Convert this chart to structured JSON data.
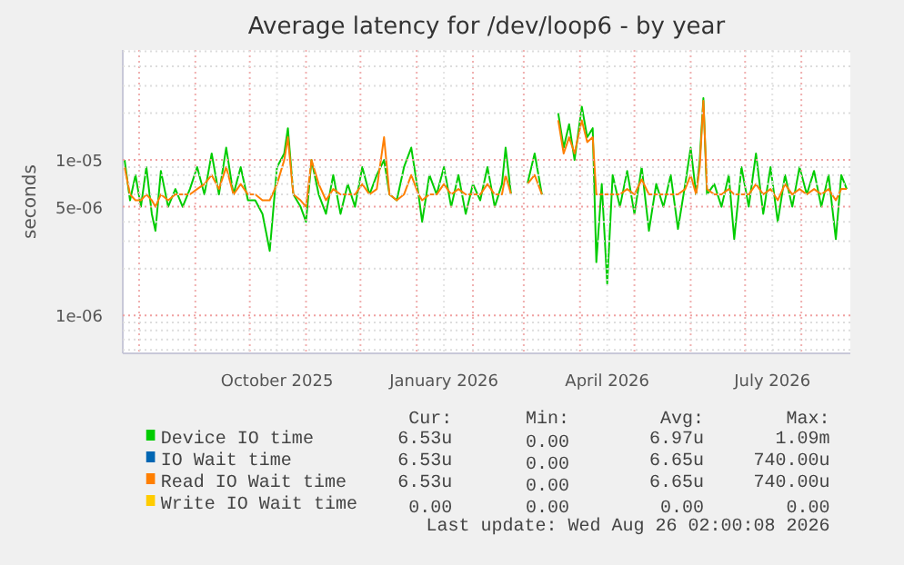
{
  "chart_data": {
    "type": "line",
    "title": "Average latency for /dev/loop6 - by year",
    "ylabel": "seconds",
    "log": "y",
    "grid": true,
    "legend": "bottom",
    "marker": "none",
    "line_style": "solid",
    "xlim": [
      "2025-07-23",
      "2026-08-28"
    ],
    "xticks": [
      {
        "value": "2025-08-01",
        "label": null
      },
      {
        "value": "2025-09-01",
        "label": null
      },
      {
        "value": "2025-10-01",
        "label": null
      },
      {
        "value": "2025-10-16",
        "label": "October 2025"
      },
      {
        "value": "2025-11-01",
        "label": null
      },
      {
        "value": "2025-12-01",
        "label": null
      },
      {
        "value": "2026-01-01",
        "label": null
      },
      {
        "value": "2026-01-16",
        "label": "January 2026"
      },
      {
        "value": "2026-02-01",
        "label": null
      },
      {
        "value": "2026-03-01",
        "label": null
      },
      {
        "value": "2026-04-01",
        "label": null
      },
      {
        "value": "2026-04-16",
        "label": "April 2026"
      },
      {
        "value": "2026-05-01",
        "label": null
      },
      {
        "value": "2026-06-01",
        "label": null
      },
      {
        "value": "2026-07-01",
        "label": null
      },
      {
        "value": "2026-07-16",
        "label": "July 2026"
      },
      {
        "value": "2026-08-01",
        "label": null
      }
    ],
    "ylim": [
      5.7e-07,
      5.1e-05
    ],
    "yticks": [
      {
        "value": 6e-07,
        "label": null
      },
      {
        "value": 7e-07,
        "label": null
      },
      {
        "value": 8e-07,
        "label": null
      },
      {
        "value": 9e-07,
        "label": null
      },
      {
        "value": 1e-06,
        "label": "1e-06"
      },
      {
        "value": 2e-06,
        "label": null
      },
      {
        "value": 3e-06,
        "label": null
      },
      {
        "value": 4e-06,
        "label": null
      },
      {
        "value": 5e-06,
        "label": "5e-06"
      },
      {
        "value": 6e-06,
        "label": null
      },
      {
        "value": 7e-06,
        "label": null
      },
      {
        "value": 8e-06,
        "label": null
      },
      {
        "value": 9e-06,
        "label": null
      },
      {
        "value": 1e-05,
        "label": "1e-05"
      },
      {
        "value": 2e-05,
        "label": null
      },
      {
        "value": 3e-05,
        "label": null
      },
      {
        "value": 4e-05,
        "label": null
      },
      {
        "value": 5e-05,
        "label": null
      }
    ],
    "x": [
      "2025-07-24",
      "2025-07-27",
      "2025-07-30",
      "2025-08-02",
      "2025-08-05",
      "2025-08-08",
      "2025-08-10",
      "2025-08-13",
      "2025-08-17",
      "2025-08-21",
      "2025-08-25",
      "2025-08-29",
      "2025-09-02",
      "2025-09-06",
      "2025-09-10",
      "2025-09-14",
      "2025-09-18",
      "2025-09-22",
      "2025-09-26",
      "2025-09-30",
      "2025-10-04",
      "2025-10-08",
      "2025-10-12",
      "2025-10-16",
      "2025-10-20",
      "2025-10-22",
      "2025-10-25",
      "2025-10-29",
      "2025-11-01",
      "2025-11-04",
      "2025-11-08",
      "2025-11-12",
      "2025-11-16",
      "2025-11-20",
      "2025-11-24",
      "2025-11-28",
      "2025-12-02",
      "2025-12-06",
      "2025-12-10",
      "2025-12-14",
      "2025-12-17",
      "2025-12-21",
      "2025-12-25",
      "2025-12-29",
      "2026-01-02",
      "2026-01-04",
      "2026-01-08",
      "2026-01-12",
      "2026-01-16",
      "2026-01-20",
      "2026-01-24",
      "2026-01-28",
      "2026-02-01",
      "2026-02-05",
      "2026-02-09",
      "2026-02-13",
      "2026-02-17",
      "2026-02-19",
      "2026-02-22",
      "2026-02-25",
      "2026-03-03",
      "2026-03-07",
      "2026-03-11",
      "2026-03-14",
      "2026-03-16",
      "2026-03-18",
      "2026-03-20",
      "2026-03-23",
      "2026-03-26",
      "2026-03-29",
      "2026-04-02",
      "2026-04-05",
      "2026-04-08",
      "2026-04-10",
      "2026-04-13",
      "2026-04-16",
      "2026-04-19",
      "2026-04-23",
      "2026-04-27",
      "2026-05-01",
      "2026-05-05",
      "2026-05-09",
      "2026-05-13",
      "2026-05-17",
      "2026-05-21",
      "2026-05-25",
      "2026-05-29",
      "2026-06-01",
      "2026-06-04",
      "2026-06-06",
      "2026-06-08",
      "2026-06-10",
      "2026-06-14",
      "2026-06-18",
      "2026-06-22",
      "2026-06-25",
      "2026-06-29",
      "2026-07-03",
      "2026-07-07",
      "2026-07-11",
      "2026-07-15",
      "2026-07-19",
      "2026-07-23",
      "2026-07-27",
      "2026-07-31",
      "2026-08-04",
      "2026-08-08",
      "2026-08-12",
      "2026-08-16",
      "2026-08-20",
      "2026-08-23",
      "2026-08-26"
    ],
    "series": [
      {
        "name": "Device IO time",
        "color": "#00cc00",
        "values": [
          1e-05,
          5.5e-06,
          8e-06,
          5e-06,
          9e-06,
          4.5e-06,
          3.5e-06,
          8.5e-06,
          5e-06,
          6.5e-06,
          5e-06,
          6.5e-06,
          9e-06,
          6e-06,
          1.1e-05,
          6e-06,
          1.2e-05,
          6e-06,
          9e-06,
          5.5e-06,
          5.5e-06,
          4.5e-06,
          2.6e-06,
          9e-06,
          1.1e-05,
          1.6e-05,
          6e-06,
          5e-06,
          4e-06,
          1e-05,
          6e-06,
          4.5e-06,
          8e-06,
          4.5e-06,
          7e-06,
          5e-06,
          9e-06,
          6e-06,
          8e-06,
          1e-05,
          6e-06,
          5.5e-06,
          9e-06,
          1.2e-05,
          6e-06,
          4e-06,
          8e-06,
          6e-06,
          9e-06,
          5e-06,
          8e-06,
          4.5e-06,
          7e-06,
          5.5e-06,
          9e-06,
          5e-06,
          7e-06,
          1.2e-05,
          6e-06,
          null,
          7e-06,
          1.1e-05,
          6e-06,
          null,
          null,
          null,
          2e-05,
          1.2e-05,
          1.7e-05,
          1e-05,
          2.2e-05,
          1.4e-05,
          1.6e-05,
          2.2e-06,
          7e-06,
          1.6e-06,
          8e-06,
          5e-06,
          8.5e-06,
          4.5e-06,
          9e-06,
          3.5e-06,
          7e-06,
          5e-06,
          8e-06,
          3.6e-06,
          7e-06,
          1.2e-05,
          6e-06,
          1e-05,
          2.5e-05,
          6e-06,
          7e-06,
          5e-06,
          8e-06,
          3.1e-06,
          9e-06,
          5e-06,
          1.1e-05,
          4.5e-06,
          9e-06,
          4e-06,
          8e-06,
          5e-06,
          9e-06,
          6e-06,
          8.5e-06,
          5e-06,
          8e-06,
          3.1e-06,
          8e-06,
          6.5e-06
        ]
      },
      {
        "name": "IO Wait time",
        "color": "#0066b3",
        "values": [
          null,
          null,
          null,
          null,
          null,
          null,
          null,
          null,
          null,
          null,
          null,
          null,
          null,
          null,
          null,
          null,
          null,
          null,
          null,
          null,
          null,
          null,
          null,
          null,
          null,
          null,
          null,
          null,
          null,
          null,
          null,
          null,
          null,
          null,
          null,
          null,
          null,
          null,
          null,
          null,
          null,
          null,
          null,
          null,
          null,
          null,
          null,
          null,
          null,
          null,
          null,
          null,
          null,
          null,
          null,
          null,
          null,
          null,
          null,
          null,
          null,
          null,
          null,
          null,
          null,
          null,
          null,
          null,
          null,
          null,
          null,
          null,
          null,
          null,
          null,
          null,
          null,
          null,
          null,
          null,
          null,
          null,
          null,
          null,
          null,
          null,
          null,
          null,
          null,
          null,
          null,
          null,
          null,
          null,
          null,
          null,
          null,
          null,
          null,
          null,
          null,
          null,
          null,
          null,
          null,
          null,
          null,
          null,
          null,
          null,
          null,
          null
        ]
      },
      {
        "name": "Read IO Wait time",
        "color": "#ff7f00",
        "values": [
          9e-06,
          6e-06,
          5.5e-06,
          5.5e-06,
          6e-06,
          5.5e-06,
          5e-06,
          6e-06,
          5.5e-06,
          6e-06,
          6e-06,
          6e-06,
          6.5e-06,
          7e-06,
          8e-06,
          6.5e-06,
          9e-06,
          6e-06,
          7e-06,
          6e-06,
          6e-06,
          5.5e-06,
          5.5e-06,
          7e-06,
          1e-05,
          1.4e-05,
          6e-06,
          5.5e-06,
          5e-06,
          1e-05,
          7e-06,
          5.5e-06,
          6.5e-06,
          6e-06,
          6e-06,
          6e-06,
          7e-06,
          6e-06,
          6.5e-06,
          1.4e-05,
          6e-06,
          5.5e-06,
          6e-06,
          8e-06,
          6e-06,
          5.5e-06,
          6e-06,
          6e-06,
          7e-06,
          6e-06,
          6.5e-06,
          6e-06,
          6e-06,
          6e-06,
          7e-06,
          6e-06,
          6e-06,
          8e-06,
          6e-06,
          null,
          7e-06,
          8e-06,
          6e-06,
          null,
          null,
          null,
          1.8e-05,
          1.1e-05,
          1.4e-05,
          1.1e-05,
          1.8e-05,
          1.3e-05,
          1.4e-05,
          6e-06,
          6e-06,
          6e-06,
          6e-06,
          6e-06,
          6.5e-06,
          6e-06,
          7.5e-06,
          6e-06,
          6e-06,
          6e-06,
          6e-06,
          6e-06,
          6.5e-06,
          8e-06,
          6e-06,
          9e-06,
          2.4e-05,
          6.5e-06,
          6e-06,
          6e-06,
          6.5e-06,
          6e-06,
          6e-06,
          6e-06,
          7e-06,
          6e-06,
          6.5e-06,
          5.5e-06,
          7e-06,
          6e-06,
          6.5e-06,
          6e-06,
          6.5e-06,
          6e-06,
          6.5e-06,
          5.5e-06,
          6.5e-06,
          6.5e-06
        ]
      },
      {
        "name": "Write IO Wait time",
        "color": "#ffcc00",
        "values": [
          null,
          null,
          null,
          null,
          null,
          null,
          null,
          null,
          null,
          null,
          null,
          null,
          null,
          null,
          null,
          null,
          null,
          null,
          null,
          null,
          null,
          null,
          null,
          null,
          null,
          null,
          null,
          null,
          null,
          null,
          null,
          null,
          null,
          null,
          null,
          null,
          null,
          null,
          null,
          null,
          null,
          null,
          null,
          null,
          null,
          null,
          null,
          null,
          null,
          null,
          null,
          null,
          null,
          null,
          null,
          null,
          null,
          null,
          null,
          null,
          null,
          null,
          null,
          null,
          null,
          null,
          null,
          null,
          null,
          null,
          null,
          null,
          null,
          null,
          null,
          null,
          null,
          null,
          null,
          null,
          null,
          null,
          null,
          null,
          null,
          null,
          null,
          null,
          null,
          null,
          null,
          null,
          null,
          null,
          null,
          null,
          null,
          null,
          null,
          null,
          null,
          null,
          null,
          null,
          null,
          null,
          null,
          null,
          null,
          null,
          null,
          null
        ]
      }
    ],
    "annotations": [
      "Cur:",
      "Min:",
      "Avg:",
      "Max:",
      "6.53u",
      "0.00",
      "6.97u",
      "1.09m",
      "6.53u",
      "0.00",
      "6.65u",
      "740.00u",
      "6.53u",
      "0.00",
      "6.65u",
      "740.00u",
      "0.00",
      "0.00",
      "0.00",
      "0.00",
      "Last update: Wed Aug 26 02:00:08 2026"
    ]
  }
}
